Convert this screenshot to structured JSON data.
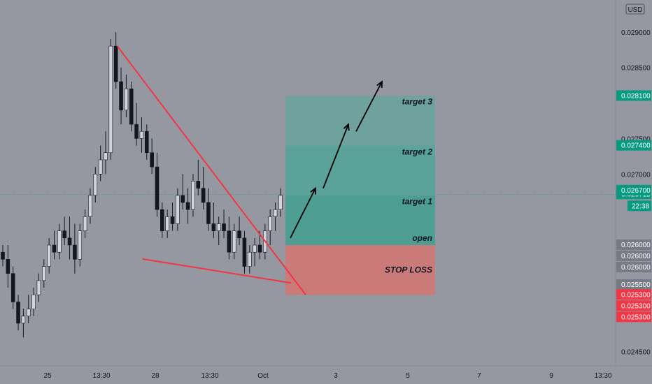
{
  "chart_data": {
    "type": "candlestick",
    "currency": "USD",
    "y_axis": {
      "min": 0.0243,
      "max": 0.02945,
      "ticks": [
        "0.029000",
        "0.028500",
        "0.027500",
        "0.027000",
        "0.024500"
      ]
    },
    "x_axis": {
      "ticks": [
        "25",
        "13:30",
        "28",
        "13:30",
        "Oct",
        "3",
        "5",
        "7",
        "9",
        "13:30"
      ]
    },
    "countdown": "22:38",
    "price_badges": [
      {
        "value": "0.028100",
        "color": "#089981"
      },
      {
        "value": "0.027400",
        "color": "#089981"
      },
      {
        "value": "0.026715",
        "color": "#089981"
      },
      {
        "value": "0.026700",
        "color": "#089981"
      },
      {
        "value": "0.026000",
        "color": "#787b86"
      },
      {
        "value": "0.026000",
        "color": "#787b86"
      },
      {
        "value": "0.026000",
        "color": "#787b86"
      },
      {
        "value": "0.025500",
        "color": "#787b86"
      },
      {
        "value": "0.025300",
        "color": "#f23645"
      },
      {
        "value": "0.025300",
        "color": "#f23645"
      },
      {
        "value": "0.025300",
        "color": "#f23645"
      }
    ],
    "current_price": 0.026715,
    "candles": [
      [
        0.0259,
        0.026,
        0.0257,
        0.0258
      ],
      [
        0.0258,
        0.026,
        0.0254,
        0.0256
      ],
      [
        0.0256,
        0.0257,
        0.0251,
        0.0252
      ],
      [
        0.0252,
        0.0253,
        0.0248,
        0.0249
      ],
      [
        0.0249,
        0.0251,
        0.0247,
        0.025
      ],
      [
        0.025,
        0.0253,
        0.0249,
        0.0251
      ],
      [
        0.0251,
        0.0254,
        0.025,
        0.0253
      ],
      [
        0.0253,
        0.0256,
        0.0252,
        0.0255
      ],
      [
        0.0255,
        0.0258,
        0.0254,
        0.0257
      ],
      [
        0.0257,
        0.0261,
        0.0256,
        0.026
      ],
      [
        0.026,
        0.0262,
        0.0258,
        0.0259
      ],
      [
        0.0259,
        0.0263,
        0.0258,
        0.0262
      ],
      [
        0.0262,
        0.0264,
        0.026,
        0.0261
      ],
      [
        0.0261,
        0.0264,
        0.0258,
        0.026
      ],
      [
        0.026,
        0.0263,
        0.0256,
        0.0258
      ],
      [
        0.0258,
        0.0263,
        0.0257,
        0.0262
      ],
      [
        0.0262,
        0.0265,
        0.0261,
        0.0264
      ],
      [
        0.0264,
        0.0268,
        0.0263,
        0.0267
      ],
      [
        0.0267,
        0.0271,
        0.0266,
        0.027
      ],
      [
        0.027,
        0.0274,
        0.0269,
        0.0272
      ],
      [
        0.0272,
        0.0276,
        0.027,
        0.0273
      ],
      [
        0.0273,
        0.0289,
        0.0272,
        0.0288
      ],
      [
        0.0288,
        0.029,
        0.0282,
        0.0283
      ],
      [
        0.0283,
        0.0285,
        0.0277,
        0.0279
      ],
      [
        0.0279,
        0.0284,
        0.0278,
        0.0282
      ],
      [
        0.0282,
        0.0283,
        0.0276,
        0.0277
      ],
      [
        0.0277,
        0.028,
        0.0274,
        0.0275
      ],
      [
        0.0275,
        0.0278,
        0.0273,
        0.0276
      ],
      [
        0.0276,
        0.0277,
        0.0272,
        0.0273
      ],
      [
        0.0273,
        0.0275,
        0.027,
        0.0271
      ],
      [
        0.0271,
        0.0273,
        0.0264,
        0.0265
      ],
      [
        0.0265,
        0.0266,
        0.0261,
        0.0262
      ],
      [
        0.0262,
        0.0265,
        0.0261,
        0.0264
      ],
      [
        0.0264,
        0.0266,
        0.0262,
        0.0263
      ],
      [
        0.0263,
        0.0268,
        0.0262,
        0.0267
      ],
      [
        0.0267,
        0.027,
        0.0265,
        0.0266
      ],
      [
        0.0266,
        0.0268,
        0.0263,
        0.0265
      ],
      [
        0.0265,
        0.027,
        0.0264,
        0.0269
      ],
      [
        0.0269,
        0.0272,
        0.0267,
        0.0268
      ],
      [
        0.0268,
        0.0271,
        0.0265,
        0.0266
      ],
      [
        0.0266,
        0.0268,
        0.0262,
        0.0263
      ],
      [
        0.0263,
        0.0266,
        0.0261,
        0.0262
      ],
      [
        0.0262,
        0.0264,
        0.026,
        0.0263
      ],
      [
        0.0263,
        0.0265,
        0.0261,
        0.0262
      ],
      [
        0.0262,
        0.0264,
        0.0258,
        0.0259
      ],
      [
        0.0259,
        0.0263,
        0.0258,
        0.0262
      ],
      [
        0.0262,
        0.0264,
        0.026,
        0.0261
      ],
      [
        0.0261,
        0.0262,
        0.0256,
        0.0257
      ],
      [
        0.0257,
        0.026,
        0.0256,
        0.0259
      ],
      [
        0.0259,
        0.0261,
        0.0257,
        0.026
      ],
      [
        0.026,
        0.0262,
        0.0258,
        0.0259
      ],
      [
        0.0259,
        0.0263,
        0.0258,
        0.0262
      ],
      [
        0.0262,
        0.0265,
        0.026,
        0.0264
      ],
      [
        0.0264,
        0.0266,
        0.0262,
        0.0265
      ],
      [
        0.0265,
        0.0268,
        0.0264,
        0.0267
      ]
    ],
    "overlays": {
      "pattern": "falling wedge",
      "upper_line": [
        [
          22,
          0.0288
        ],
        [
          55,
          0.0253
        ]
      ],
      "lower_line": [
        [
          33,
          0.0261
        ],
        [
          55,
          0.0253
        ]
      ]
    },
    "position": {
      "zones": [
        {
          "label": "target 3",
          "top": 0.0281,
          "bottom": 0.0274,
          "color": "#6fa29c"
        },
        {
          "label": "target 2",
          "top": 0.0274,
          "bottom": 0.0267,
          "color": "#5ba39a"
        },
        {
          "label": "target 1",
          "top": 0.0267,
          "bottom": 0.026,
          "color": "#4f9e94"
        },
        {
          "label": "STOP LOSS",
          "top": 0.026,
          "bottom": 0.0253,
          "color": "#c97a79"
        }
      ],
      "open_label": "open"
    }
  }
}
